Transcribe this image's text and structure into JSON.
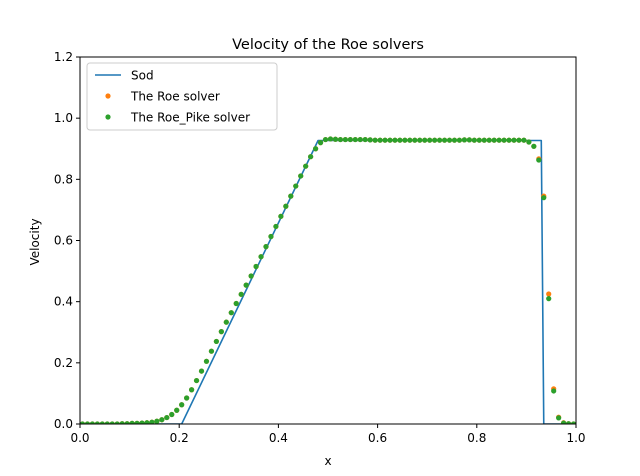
{
  "chart_data": {
    "type": "line",
    "title": "Velocity of the Roe solvers",
    "xlabel": "x",
    "ylabel": "Velocity",
    "xlim": [
      0,
      1
    ],
    "ylim": [
      0,
      1.2
    ],
    "xticks": [
      "0.0",
      "0.2",
      "0.4",
      "0.6",
      "0.8",
      "1.0"
    ],
    "yticks": [
      "0.0",
      "0.2",
      "0.4",
      "0.6",
      "0.8",
      "1.0",
      "1.2"
    ],
    "grid": false,
    "legend_position": "top-left",
    "series": [
      {
        "name": "Sod",
        "kind": "line",
        "color": "#1f77b4",
        "x": [
          0.0,
          0.205,
          0.48,
          0.93,
          0.935,
          1.0
        ],
        "y": [
          0.0,
          0.0,
          0.927,
          0.927,
          0.0,
          0.0
        ]
      },
      {
        "name": "The Roe solver",
        "kind": "scatter",
        "color": "#ff7f0e",
        "x": [
          0.005,
          0.015,
          0.025,
          0.035,
          0.045,
          0.055,
          0.065,
          0.075,
          0.085,
          0.095,
          0.105,
          0.115,
          0.125,
          0.135,
          0.145,
          0.155,
          0.165,
          0.175,
          0.185,
          0.195,
          0.205,
          0.215,
          0.225,
          0.235,
          0.245,
          0.255,
          0.265,
          0.275,
          0.285,
          0.295,
          0.305,
          0.315,
          0.325,
          0.335,
          0.345,
          0.355,
          0.365,
          0.375,
          0.385,
          0.395,
          0.405,
          0.415,
          0.425,
          0.435,
          0.445,
          0.455,
          0.465,
          0.475,
          0.485,
          0.495,
          0.505,
          0.515,
          0.525,
          0.535,
          0.545,
          0.555,
          0.565,
          0.575,
          0.585,
          0.595,
          0.605,
          0.615,
          0.625,
          0.635,
          0.645,
          0.655,
          0.665,
          0.675,
          0.685,
          0.695,
          0.705,
          0.715,
          0.725,
          0.735,
          0.745,
          0.755,
          0.765,
          0.775,
          0.785,
          0.795,
          0.805,
          0.815,
          0.825,
          0.835,
          0.845,
          0.855,
          0.865,
          0.875,
          0.885,
          0.895,
          0.905,
          0.915,
          0.925,
          0.935,
          0.945,
          0.955,
          0.965,
          0.975,
          0.985,
          0.995
        ],
        "y": [
          0,
          0,
          0,
          0,
          0,
          0,
          0,
          0,
          0.001,
          0.001,
          0.002,
          0.002,
          0.003,
          0.004,
          0.006,
          0.009,
          0.014,
          0.021,
          0.031,
          0.045,
          0.063,
          0.085,
          0.112,
          0.142,
          0.173,
          0.205,
          0.238,
          0.27,
          0.302,
          0.333,
          0.364,
          0.394,
          0.424,
          0.454,
          0.484,
          0.515,
          0.547,
          0.58,
          0.613,
          0.646,
          0.679,
          0.712,
          0.745,
          0.778,
          0.811,
          0.843,
          0.874,
          0.9,
          0.92,
          0.93,
          0.932,
          0.931,
          0.93,
          0.93,
          0.93,
          0.93,
          0.93,
          0.93,
          0.929,
          0.928,
          0.928,
          0.928,
          0.928,
          0.928,
          0.928,
          0.928,
          0.928,
          0.928,
          0.928,
          0.928,
          0.928,
          0.928,
          0.928,
          0.928,
          0.928,
          0.928,
          0.928,
          0.929,
          0.929,
          0.928,
          0.928,
          0.928,
          0.928,
          0.928,
          0.928,
          0.928,
          0.928,
          0.928,
          0.928,
          0.928,
          0.922,
          0.908,
          0.867,
          0.745,
          0.425,
          0.115,
          0.022,
          0.004,
          0.001,
          0.0
        ]
      },
      {
        "name": "The Roe_Pike solver",
        "kind": "scatter",
        "color": "#2ca02c",
        "x": [
          0.005,
          0.015,
          0.025,
          0.035,
          0.045,
          0.055,
          0.065,
          0.075,
          0.085,
          0.095,
          0.105,
          0.115,
          0.125,
          0.135,
          0.145,
          0.155,
          0.165,
          0.175,
          0.185,
          0.195,
          0.205,
          0.215,
          0.225,
          0.235,
          0.245,
          0.255,
          0.265,
          0.275,
          0.285,
          0.295,
          0.305,
          0.315,
          0.325,
          0.335,
          0.345,
          0.355,
          0.365,
          0.375,
          0.385,
          0.395,
          0.405,
          0.415,
          0.425,
          0.435,
          0.445,
          0.455,
          0.465,
          0.475,
          0.485,
          0.495,
          0.505,
          0.515,
          0.525,
          0.535,
          0.545,
          0.555,
          0.565,
          0.575,
          0.585,
          0.595,
          0.605,
          0.615,
          0.625,
          0.635,
          0.645,
          0.655,
          0.665,
          0.675,
          0.685,
          0.695,
          0.705,
          0.715,
          0.725,
          0.735,
          0.745,
          0.755,
          0.765,
          0.775,
          0.785,
          0.795,
          0.805,
          0.815,
          0.825,
          0.835,
          0.845,
          0.855,
          0.865,
          0.875,
          0.885,
          0.895,
          0.905,
          0.915,
          0.925,
          0.935,
          0.945,
          0.955,
          0.965,
          0.975,
          0.985,
          0.995
        ],
        "y": [
          0,
          0,
          0,
          0,
          0,
          0,
          0,
          0,
          0.001,
          0.001,
          0.002,
          0.002,
          0.003,
          0.004,
          0.006,
          0.009,
          0.014,
          0.021,
          0.031,
          0.045,
          0.063,
          0.085,
          0.112,
          0.142,
          0.173,
          0.205,
          0.238,
          0.27,
          0.302,
          0.333,
          0.364,
          0.394,
          0.424,
          0.454,
          0.484,
          0.515,
          0.547,
          0.58,
          0.613,
          0.646,
          0.679,
          0.712,
          0.745,
          0.778,
          0.811,
          0.843,
          0.874,
          0.9,
          0.92,
          0.93,
          0.932,
          0.931,
          0.93,
          0.93,
          0.93,
          0.93,
          0.93,
          0.93,
          0.929,
          0.928,
          0.928,
          0.928,
          0.928,
          0.928,
          0.928,
          0.928,
          0.928,
          0.928,
          0.928,
          0.928,
          0.928,
          0.928,
          0.928,
          0.928,
          0.928,
          0.928,
          0.928,
          0.929,
          0.929,
          0.928,
          0.928,
          0.928,
          0.928,
          0.928,
          0.928,
          0.928,
          0.928,
          0.928,
          0.928,
          0.928,
          0.922,
          0.908,
          0.863,
          0.74,
          0.41,
          0.108,
          0.02,
          0.003,
          0.001,
          0.0
        ]
      }
    ]
  }
}
